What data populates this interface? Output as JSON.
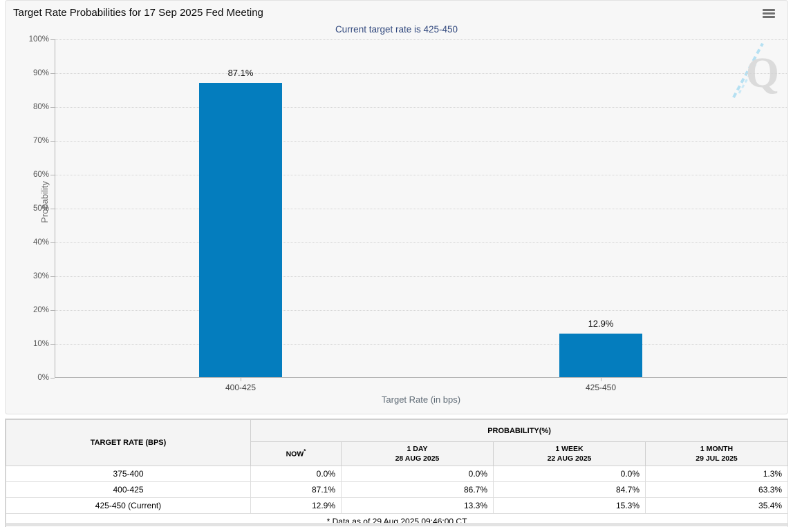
{
  "header": {
    "title": "Target Rate Probabilities for 17 Sep 2025 Fed Meeting"
  },
  "chart": {
    "subtitle": "Current target rate is 425-450",
    "y_axis_title": "Probability",
    "x_axis_title": "Target Rate (in bps)",
    "y_ticks": [
      "100%",
      "90%",
      "80%",
      "70%",
      "60%",
      "50%",
      "40%",
      "30%",
      "20%",
      "10%",
      "0%"
    ],
    "bar_color": "#047dbe",
    "watermark_letter": "Q"
  },
  "chart_data": {
    "type": "bar",
    "title": "Target Rate Probabilities for 17 Sep 2025 Fed Meeting",
    "subtitle": "Current target rate is 425-450",
    "categories": [
      "400-425",
      "425-450"
    ],
    "values": [
      87.1,
      12.9
    ],
    "data_labels": [
      "87.1%",
      "12.9%"
    ],
    "xlabel": "Target Rate (in bps)",
    "ylabel": "Probability",
    "ylim": [
      0,
      100
    ],
    "y_tick_step": 10,
    "grid": "horizontal-dotted",
    "legend": "none",
    "bar_color": "#047dbe"
  },
  "table": {
    "rate_header": "TARGET RATE (BPS)",
    "prob_header": "PROBABILITY(%)",
    "now_header": "NOW",
    "now_asterisk": "*",
    "col_headers": [
      {
        "line1": "1 DAY",
        "line2": "28 AUG 2025"
      },
      {
        "line1": "1 WEEK",
        "line2": "22 AUG 2025"
      },
      {
        "line1": "1 MONTH",
        "line2": "29 JUL 2025"
      }
    ],
    "rows": [
      {
        "rate": "375-400",
        "now": "0.0%",
        "day": "0.0%",
        "week": "0.0%",
        "month": "1.3%"
      },
      {
        "rate": "400-425",
        "now": "87.1%",
        "day": "86.7%",
        "week": "84.7%",
        "month": "63.3%"
      },
      {
        "rate": "425-450 (Current)",
        "now": "12.9%",
        "day": "13.3%",
        "week": "15.3%",
        "month": "35.4%"
      }
    ],
    "footnote": "* Data as of 29 Aug 2025 09:46:00 CT"
  }
}
